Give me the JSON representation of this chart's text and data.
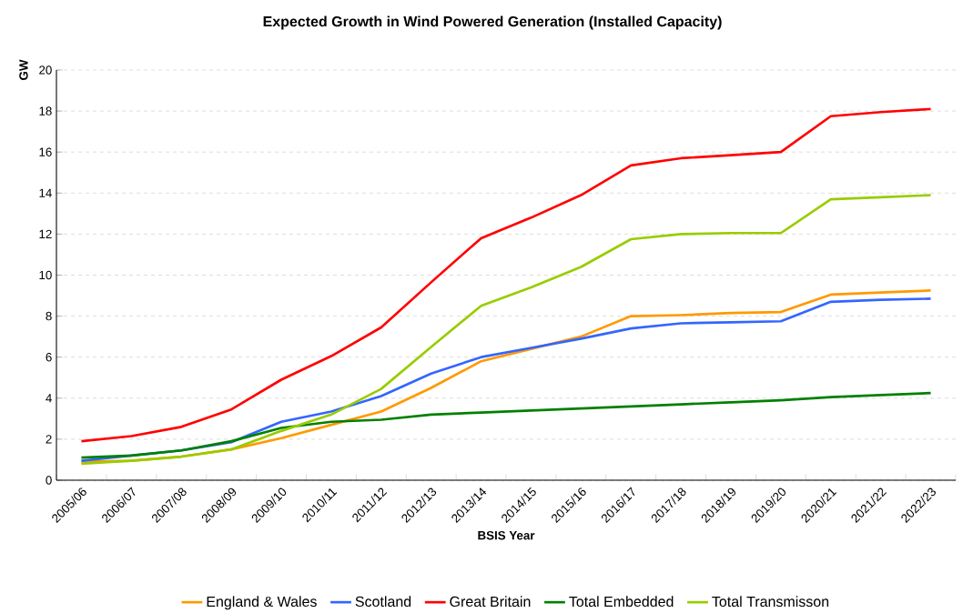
{
  "chart_data": {
    "type": "line",
    "title": "Expected Growth in Wind Powered Generation (Installed Capacity)",
    "xlabel": "BSIS Year",
    "ylabel": "GW",
    "categories": [
      "2005/06",
      "2006/07",
      "2007/08",
      "2008/09",
      "2009/10",
      "2010/11",
      "2011/12",
      "2012/13",
      "2013/14",
      "2014/15",
      "2015/16",
      "2016/17",
      "2017/18",
      "2018/19",
      "2019/20",
      "2020/21",
      "2021/22",
      "2022/23"
    ],
    "series": [
      {
        "name": "England & Wales",
        "color": "#ff9900",
        "values": [
          0.9,
          0.95,
          1.15,
          1.5,
          2.05,
          2.7,
          3.35,
          4.5,
          5.8,
          6.4,
          7.0,
          8.0,
          8.05,
          8.15,
          8.2,
          9.05,
          9.15,
          9.25
        ]
      },
      {
        "name": "Scotland",
        "color": "#3366ff",
        "values": [
          0.95,
          1.2,
          1.45,
          1.85,
          2.85,
          3.35,
          4.1,
          5.2,
          6.0,
          6.45,
          6.9,
          7.4,
          7.65,
          7.7,
          7.75,
          8.7,
          8.8,
          8.85
        ]
      },
      {
        "name": "Great Britain",
        "color": "#ff0000",
        "values": [
          1.9,
          2.15,
          2.6,
          3.45,
          4.9,
          6.05,
          7.45,
          9.65,
          11.8,
          12.8,
          13.9,
          15.35,
          15.7,
          15.85,
          16.0,
          17.75,
          17.95,
          18.1
        ]
      },
      {
        "name": "Total Embedded",
        "color": "#008000",
        "values": [
          1.1,
          1.2,
          1.45,
          1.9,
          2.55,
          2.85,
          2.95,
          3.2,
          3.3,
          3.4,
          3.5,
          3.6,
          3.7,
          3.8,
          3.9,
          4.05,
          4.15,
          4.25
        ]
      },
      {
        "name": "Total Transmisson",
        "color": "#99cc00",
        "values": [
          0.8,
          0.95,
          1.15,
          1.5,
          2.4,
          3.2,
          4.45,
          6.5,
          8.5,
          9.4,
          10.4,
          11.75,
          12.0,
          12.05,
          12.05,
          13.7,
          13.8,
          13.9
        ]
      }
    ],
    "ylim": [
      0,
      20
    ],
    "yticks": [
      0,
      2,
      4,
      6,
      8,
      10,
      12,
      14,
      16,
      18,
      20
    ],
    "grid": "y",
    "legend": "bottom"
  }
}
